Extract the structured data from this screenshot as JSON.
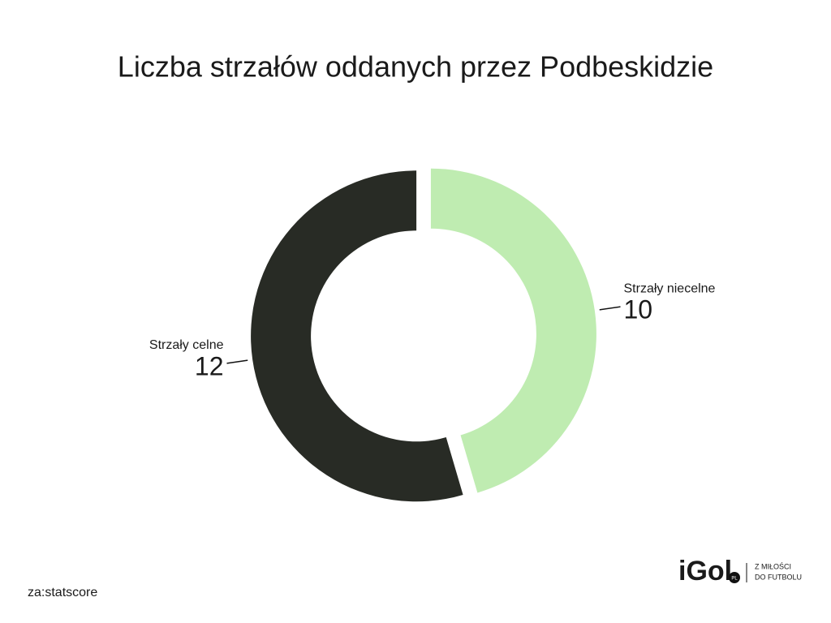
{
  "chart_data": {
    "type": "donut",
    "title": "Liczba strzałów oddanych przez Podbeskidzie",
    "categories": [
      "Strzały niecelne",
      "Strzały celne"
    ],
    "values": [
      10,
      12
    ],
    "colors": [
      "#bfecb1",
      "#282b25"
    ],
    "source": "za:statscore"
  },
  "logo": {
    "name": "iGol",
    "badge": "PL",
    "tagline": [
      "Z MIŁOŚCI",
      "DO FUTBOLU"
    ]
  }
}
